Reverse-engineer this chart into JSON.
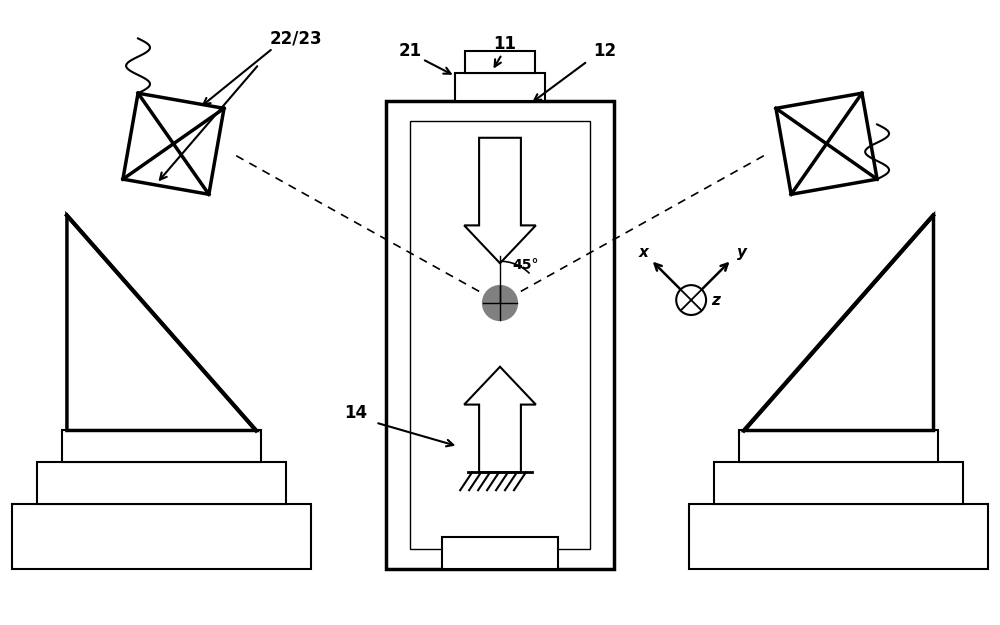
{
  "bg_color": "#ffffff",
  "line_color": "#000000",
  "figure_size": [
    10.0,
    6.25
  ],
  "dpi": 100,
  "lw": 1.5,
  "lw_thick": 2.5,
  "labels": {
    "label_22_23": "22/23",
    "label_21": "21",
    "label_11": "11",
    "label_12": "12",
    "label_14": "14",
    "label_45": "45°",
    "label_x": "x",
    "label_y": "y",
    "label_z": "z"
  },
  "xlim": [
    0,
    10
  ],
  "ylim": [
    0,
    6.25
  ]
}
